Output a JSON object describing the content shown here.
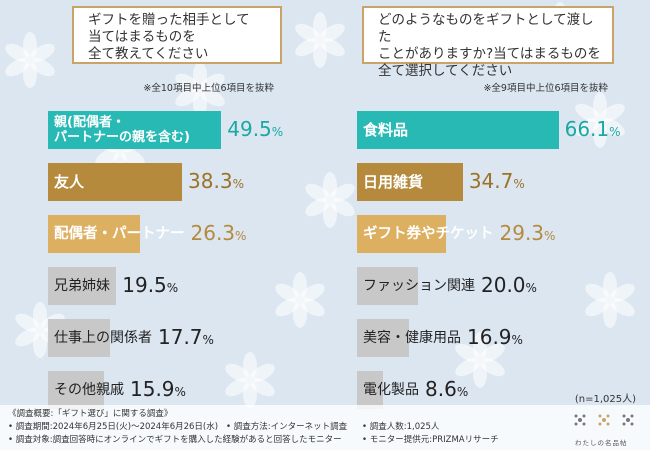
{
  "left_chart": {
    "question": "ギフトを贈った相手として\n当てはまるものを\n全て教えてください",
    "note": "※全10項目中上位6項目を抜粋",
    "items": [
      {
        "label": "親(配偶者・\nパートナーの親を含む)",
        "value": "49.5",
        "unit": "%"
      },
      {
        "label": "友人",
        "value": "38.3",
        "unit": "%"
      },
      {
        "label": "配偶者・パートナー",
        "value": "26.3",
        "unit": "%"
      },
      {
        "label": "兄弟姉妹",
        "value": "19.5",
        "unit": "%"
      },
      {
        "label": "仕事上の関係者",
        "value": "17.7",
        "unit": "%"
      },
      {
        "label": "その他親戚",
        "value": "15.9",
        "unit": "%"
      }
    ]
  },
  "right_chart": {
    "question": "どのようなものをギフトとして渡した\nことがありますか?当てはまるものを\n全て選択してください",
    "note": "※全9項目中上位6項目を抜粋",
    "items": [
      {
        "label": "食料品",
        "value": "66.1",
        "unit": "%"
      },
      {
        "label": "日用雑貨",
        "value": "34.7",
        "unit": "%"
      },
      {
        "label": "ギフト券やチケット",
        "value": "29.3",
        "unit": "%"
      },
      {
        "label": "ファッション関連",
        "value": "20.0",
        "unit": "%"
      },
      {
        "label": "美容・健康用品",
        "value": "16.9",
        "unit": "%"
      },
      {
        "label": "電化製品",
        "value": "8.6",
        "unit": "%"
      }
    ]
  },
  "chart_data": [
    {
      "type": "bar",
      "title": "ギフトを贈った相手として当てはまるものを全て教えてください",
      "categories": [
        "親(配偶者・パートナーの親を含む)",
        "友人",
        "配偶者・パートナー",
        "兄弟姉妹",
        "仕事上の関係者",
        "その他親戚"
      ],
      "values": [
        49.5,
        38.3,
        26.3,
        19.5,
        17.7,
        15.9
      ]
    },
    {
      "type": "bar",
      "title": "どのようなものをギフトとして渡したことがありますか?当てはまるものを全て選択してください",
      "categories": [
        "食料品",
        "日用雑貨",
        "ギフト券やチケット",
        "ファッション関連",
        "美容・健康用品",
        "電化製品"
      ],
      "values": [
        66.1,
        34.7,
        29.3,
        20.0,
        16.9,
        8.6
      ]
    }
  ],
  "sample_size": "(n=1,025人)",
  "footer": {
    "survey_title": "《調査概要:「ギフト選び」に関する調査》",
    "period": "• 調査期間:2024年6月25日(火)〜2024年6月26日(水)",
    "method": "• 調査方法:インターネット調査",
    "respondents": "• 調査人数:1,025人",
    "target": "• 調査対象:調査回答時にオンラインでギフトを購入した経験があると回答したモニター",
    "monitor": "• モニター提供元:PRIZMAリサーチ"
  },
  "logo": {
    "text": "わたしの名品帖"
  },
  "colors": {
    "top": "#29b9b5",
    "second": "#b58a3c",
    "third": "#ddb061",
    "other": "#c8c8c8",
    "box_border": "#c9a466"
  }
}
